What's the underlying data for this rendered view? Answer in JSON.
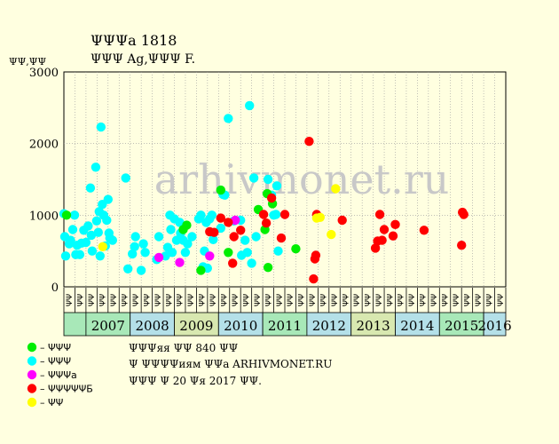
{
  "chart_data": {
    "type": "scatter",
    "title": "ΨΨΨa 1818",
    "subtitle": "ΨΨΨ Ag,ΨΨΨ F.",
    "ylabel": "ΨΨ,ΨΨ",
    "ylim": [
      0,
      3000
    ],
    "yticks": [
      "0",
      "1000",
      "2000",
      "3000"
    ],
    "grid": true,
    "years": [
      "2007",
      "2008",
      "2009",
      "2010",
      "2011",
      "2012",
      "2013",
      "2014",
      "2015",
      "2016"
    ],
    "quarters": [
      "ΨΨ",
      "ΨΨ",
      "ΨΨ",
      "ΨΨ"
    ],
    "legend": [
      {
        "label": "– ΨΨΨ",
        "color": "#00ee00"
      },
      {
        "label": "– ΨΨΨ",
        "color": "#00ffff"
      },
      {
        "label": "– ΨΨΨa",
        "color": "#ff00ff"
      },
      {
        "label": "– ΨΨΨΨΨБ",
        "color": "#ff0000"
      },
      {
        "label": "– ΨΨ",
        "color": "#ffff00"
      }
    ],
    "series": [
      {
        "color": "#00ffff",
        "points": [
          [
            2007.0,
            1020
          ],
          [
            2007.02,
            700
          ],
          [
            2007.04,
            430
          ],
          [
            2007.12,
            600
          ],
          [
            2007.15,
            650
          ],
          [
            2007.2,
            800
          ],
          [
            2007.24,
            1000
          ],
          [
            2007.27,
            450
          ],
          [
            2007.3,
            580
          ],
          [
            2007.36,
            450
          ],
          [
            2007.4,
            610
          ],
          [
            2007.45,
            790
          ],
          [
            2007.5,
            620
          ],
          [
            2007.55,
            850
          ],
          [
            2007.6,
            1380
          ],
          [
            2007.62,
            720
          ],
          [
            2007.64,
            500
          ],
          [
            2007.72,
            1670
          ],
          [
            2007.74,
            920
          ],
          [
            2007.78,
            760
          ],
          [
            2007.8,
            1050
          ],
          [
            2007.82,
            430
          ],
          [
            2007.84,
            2230
          ],
          [
            2007.87,
            1150
          ],
          [
            2007.9,
            1000
          ],
          [
            2007.94,
            570
          ],
          [
            2007.97,
            930
          ],
          [
            2008.0,
            1220
          ],
          [
            2008.02,
            750
          ],
          [
            2008.04,
            680
          ],
          [
            2008.1,
            650
          ],
          [
            2008.4,
            1520
          ],
          [
            2008.45,
            250
          ],
          [
            2008.55,
            460
          ],
          [
            2008.6,
            560
          ],
          [
            2008.62,
            700
          ],
          [
            2008.75,
            230
          ],
          [
            2008.8,
            600
          ],
          [
            2008.84,
            480
          ],
          [
            2009.1,
            380
          ],
          [
            2009.15,
            700
          ],
          [
            2009.3,
            430
          ],
          [
            2009.35,
            550
          ],
          [
            2009.4,
            1000
          ],
          [
            2009.42,
            800
          ],
          [
            2009.45,
            480
          ],
          [
            2009.5,
            950
          ],
          [
            2009.55,
            650
          ],
          [
            2009.62,
            900
          ],
          [
            2009.64,
            750
          ],
          [
            2009.7,
            650
          ],
          [
            2009.75,
            480
          ],
          [
            2009.8,
            600
          ],
          [
            2009.9,
            700
          ],
          [
            2010.05,
            950
          ],
          [
            2010.1,
            1000
          ],
          [
            2010.15,
            280
          ],
          [
            2010.18,
            500
          ],
          [
            2010.22,
            900
          ],
          [
            2010.25,
            260
          ],
          [
            2010.3,
            950
          ],
          [
            2010.35,
            1000
          ],
          [
            2010.38,
            660
          ],
          [
            2010.55,
            820
          ],
          [
            2010.6,
            1290
          ],
          [
            2010.64,
            1280
          ],
          [
            2010.72,
            2350
          ],
          [
            2010.85,
            920
          ],
          [
            2011.0,
            930
          ],
          [
            2011.02,
            440
          ],
          [
            2011.1,
            650
          ],
          [
            2011.15,
            480
          ],
          [
            2011.2,
            2530
          ],
          [
            2011.25,
            330
          ],
          [
            2011.3,
            1520
          ],
          [
            2011.35,
            700
          ],
          [
            2011.62,
            1500
          ],
          [
            2011.7,
            1280
          ],
          [
            2011.75,
            1000
          ],
          [
            2011.8,
            1010
          ],
          [
            2011.82,
            1410
          ],
          [
            2011.85,
            500
          ]
        ]
      },
      {
        "color": "#00ee00",
        "points": [
          [
            2007.06,
            1000
          ],
          [
            2009.7,
            800
          ],
          [
            2009.78,
            860
          ],
          [
            2010.1,
            230
          ],
          [
            2010.55,
            1350
          ],
          [
            2010.72,
            480
          ],
          [
            2011.4,
            1080
          ],
          [
            2011.55,
            800
          ],
          [
            2011.6,
            1300
          ],
          [
            2011.62,
            270
          ],
          [
            2011.72,
            1160
          ],
          [
            2012.25,
            530
          ]
        ]
      },
      {
        "color": "#ff00ff",
        "points": [
          [
            2009.15,
            410
          ],
          [
            2009.62,
            340
          ],
          [
            2010.3,
            430
          ],
          [
            2010.88,
            930
          ]
        ]
      },
      {
        "color": "#ff0000",
        "points": [
          [
            2010.3,
            770
          ],
          [
            2010.4,
            760
          ],
          [
            2010.55,
            960
          ],
          [
            2010.72,
            900
          ],
          [
            2010.82,
            330
          ],
          [
            2010.85,
            700
          ],
          [
            2011.0,
            790
          ],
          [
            2011.52,
            1010
          ],
          [
            2011.58,
            890
          ],
          [
            2011.7,
            1240
          ],
          [
            2011.92,
            680
          ],
          [
            2012.0,
            1010
          ],
          [
            2012.55,
            2030
          ],
          [
            2012.65,
            110
          ],
          [
            2012.68,
            390
          ],
          [
            2012.7,
            440
          ],
          [
            2012.72,
            1010
          ],
          [
            2013.3,
            930
          ],
          [
            2014.05,
            540
          ],
          [
            2014.1,
            640
          ],
          [
            2014.15,
            1010
          ],
          [
            2014.2,
            650
          ],
          [
            2014.25,
            800
          ],
          [
            2014.45,
            710
          ],
          [
            2014.5,
            870
          ],
          [
            2015.15,
            790
          ],
          [
            2016.0,
            580
          ],
          [
            2016.02,
            1040
          ],
          [
            2016.05,
            1010
          ]
        ]
      },
      {
        "color": "#ffff00",
        "points": [
          [
            2007.88,
            560
          ],
          [
            2012.72,
            960
          ],
          [
            2012.8,
            970
          ],
          [
            2013.05,
            730
          ],
          [
            2013.15,
            1370
          ]
        ]
      }
    ]
  },
  "notes": [
    "ΨΨΨяя ΨΨ 840 ΨΨ",
    "Ψ ΨΨΨΨиям ΨΨa ARHIVMONET.RU",
    "ΨΨΨ Ψ 20 Ψя 2017 ΨΨ."
  ],
  "watermark": "arhivmonet.ru",
  "colors": {
    "background": "#ffffe0",
    "year_band_a": "#a8e8b8",
    "year_band_b": "#b4e0e8",
    "year_band_c": "#d8e8b0"
  }
}
